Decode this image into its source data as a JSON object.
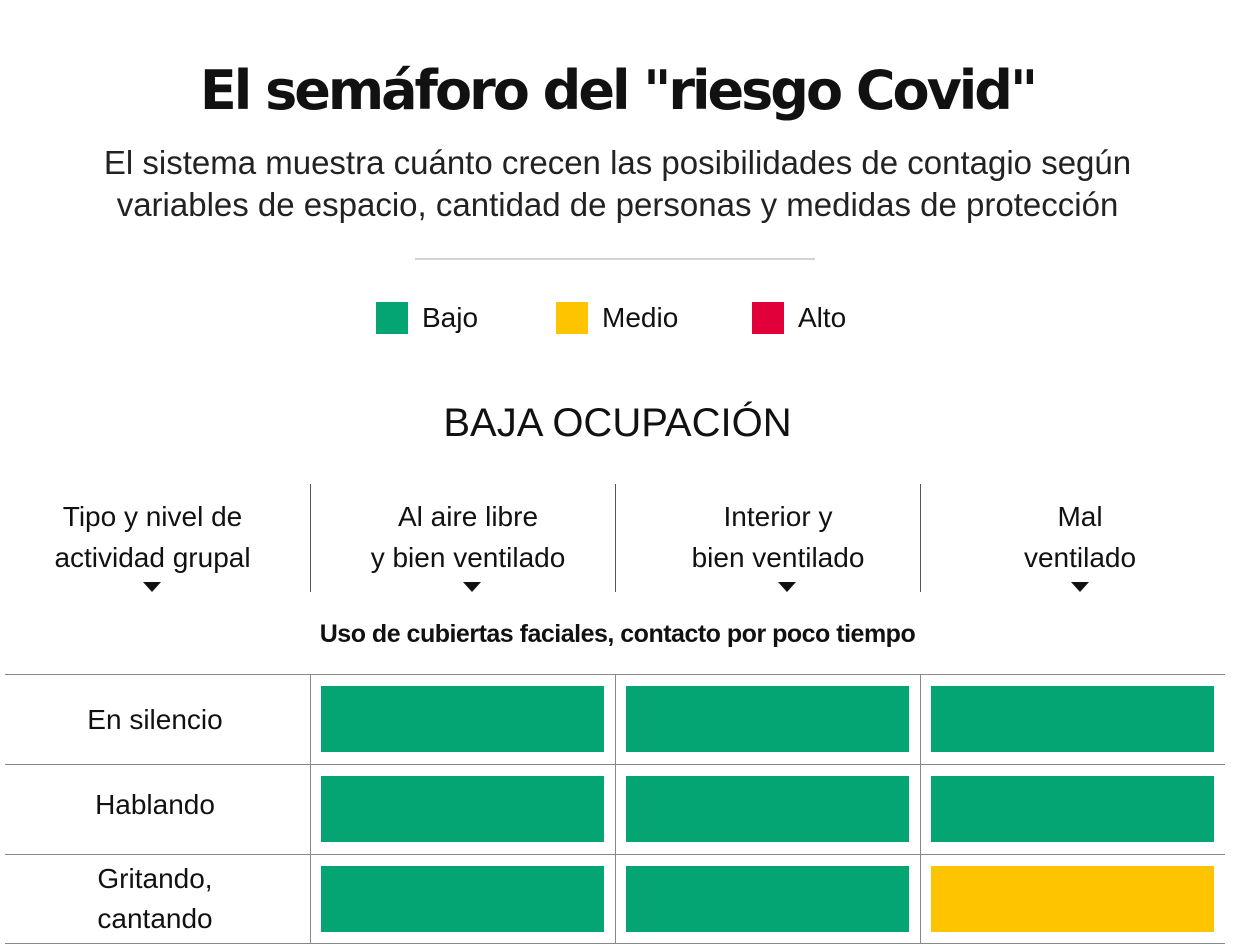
{
  "title": "El semáforo del \"riesgo Covid\"",
  "subtitle": "El sistema muestra cuánto crecen las posibilidades de contagio según variables de espacio, cantidad de personas y medidas de protección",
  "legend": [
    {
      "label": "Bajo",
      "color": "#04A572"
    },
    {
      "label": "Medio",
      "color": "#FFC400"
    },
    {
      "label": "Alto",
      "color": "#E2003A"
    }
  ],
  "section_heading": "BAJA OCUPACIÓN",
  "columns": [
    {
      "line1": "Tipo y nivel de",
      "line2": "actividad grupal"
    },
    {
      "line1": "Al aire libre",
      "line2": "y bien ventilado"
    },
    {
      "line1": "Interior y",
      "line2": "bien ventilado"
    },
    {
      "line1": "Mal",
      "line2": "ventilado"
    }
  ],
  "condition": "Uso de cubiertas faciales, contacto por poco tiempo",
  "rows": [
    {
      "line1": "En silencio",
      "line2": ""
    },
    {
      "line1": "Hablando",
      "line2": ""
    },
    {
      "line1": "Gritando,",
      "line2": "cantando"
    }
  ],
  "chart_data": {
    "type": "heatmap",
    "title": "El semáforo del \"riesgo Covid\"",
    "section": "BAJA OCUPACIÓN",
    "condition": "Uso de cubiertas faciales, contacto por poco tiempo",
    "row_header": "Tipo y nivel de actividad grupal",
    "columns": [
      "Al aire libre y bien ventilado",
      "Interior y bien ventilado",
      "Mal ventilado"
    ],
    "rows": [
      "En silencio",
      "Hablando",
      "Gritando, cantando"
    ],
    "levels": [
      "Bajo",
      "Medio",
      "Alto"
    ],
    "values": [
      [
        "Bajo",
        "Bajo",
        "Bajo"
      ],
      [
        "Bajo",
        "Bajo",
        "Bajo"
      ],
      [
        "Bajo",
        "Bajo",
        "Medio"
      ]
    ]
  }
}
